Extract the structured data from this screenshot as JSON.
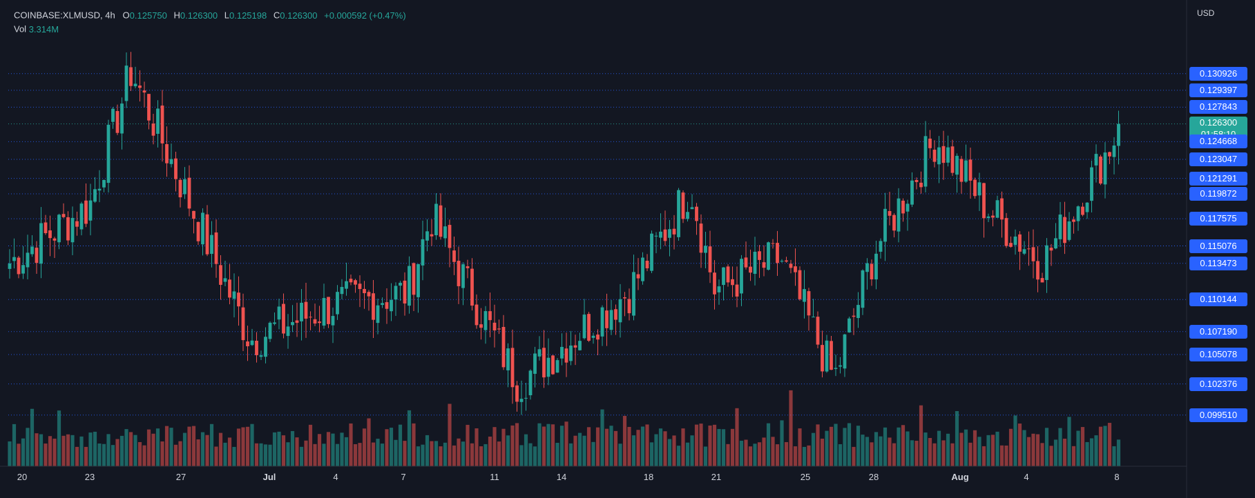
{
  "header": {
    "symbol": "COINBASE:XLMUSD",
    "interval": "4h",
    "open_label": "O",
    "open": "0.125750",
    "high_label": "H",
    "high": "0.126300",
    "low_label": "L",
    "low": "0.125198",
    "close_label": "C",
    "close": "0.126300",
    "change": "+0.000592 (+0.47%)",
    "vol_label": "Vol",
    "vol": "3.314M"
  },
  "axis": {
    "currency": "USD"
  },
  "countdown": "01:58:10",
  "colors": {
    "up": "#26a69a",
    "down": "#ef5350",
    "background": "#131722",
    "label_blue": "#2962ff",
    "grid_dot": "#2962ff"
  },
  "chart_data": {
    "type": "candlestick",
    "symbol": "COINBASE:XLMUSD",
    "interval": "4h",
    "y_range": [
      0.0948,
      0.1358
    ],
    "price_levels": [
      "0.130926",
      "0.129397",
      "0.127843",
      "0.126300",
      "0.124668",
      "0.123047",
      "0.121291",
      "0.119872",
      "0.117575",
      "0.115076",
      "0.115076",
      "0.113473",
      "0.110144",
      "0.107190",
      "0.105078",
      "0.102376",
      "0.099510"
    ],
    "last_price": "0.126300",
    "x_tick_labels": [
      "20",
      "23",
      "27",
      "Jul",
      "4",
      "7",
      "11",
      "14",
      "18",
      "21",
      "25",
      "28",
      "Aug",
      "4",
      "8"
    ],
    "month_labels": [
      "Jul",
      "Aug"
    ],
    "key_points": [
      {
        "date": "Jun 19",
        "close": 0.1135
      },
      {
        "date": "Jun 23",
        "close": 0.1188
      },
      {
        "date": "Jun 25",
        "close": 0.1312
      },
      {
        "date": "Jun 30",
        "close": 0.1065
      },
      {
        "date": "Jul 4",
        "close": 0.1097
      },
      {
        "date": "Jul 7",
        "close": 0.1108
      },
      {
        "date": "Jul 8",
        "close": 0.1178
      },
      {
        "date": "Jul 12",
        "close": 0.1025
      },
      {
        "date": "Jul 17",
        "close": 0.111
      },
      {
        "date": "Jul 20",
        "close": 0.1205
      },
      {
        "date": "Jul 21",
        "close": 0.111
      },
      {
        "date": "Jul 24",
        "close": 0.114
      },
      {
        "date": "Jul 26",
        "close": 0.1028
      },
      {
        "date": "Jul 28",
        "close": 0.1145
      },
      {
        "date": "Jul 31",
        "close": 0.125
      },
      {
        "date": "Aug 2",
        "close": 0.1185
      },
      {
        "date": "Aug 5",
        "close": 0.1135
      },
      {
        "date": "Aug 8",
        "close": 0.1263
      }
    ],
    "volume_latest": "3.314M"
  }
}
